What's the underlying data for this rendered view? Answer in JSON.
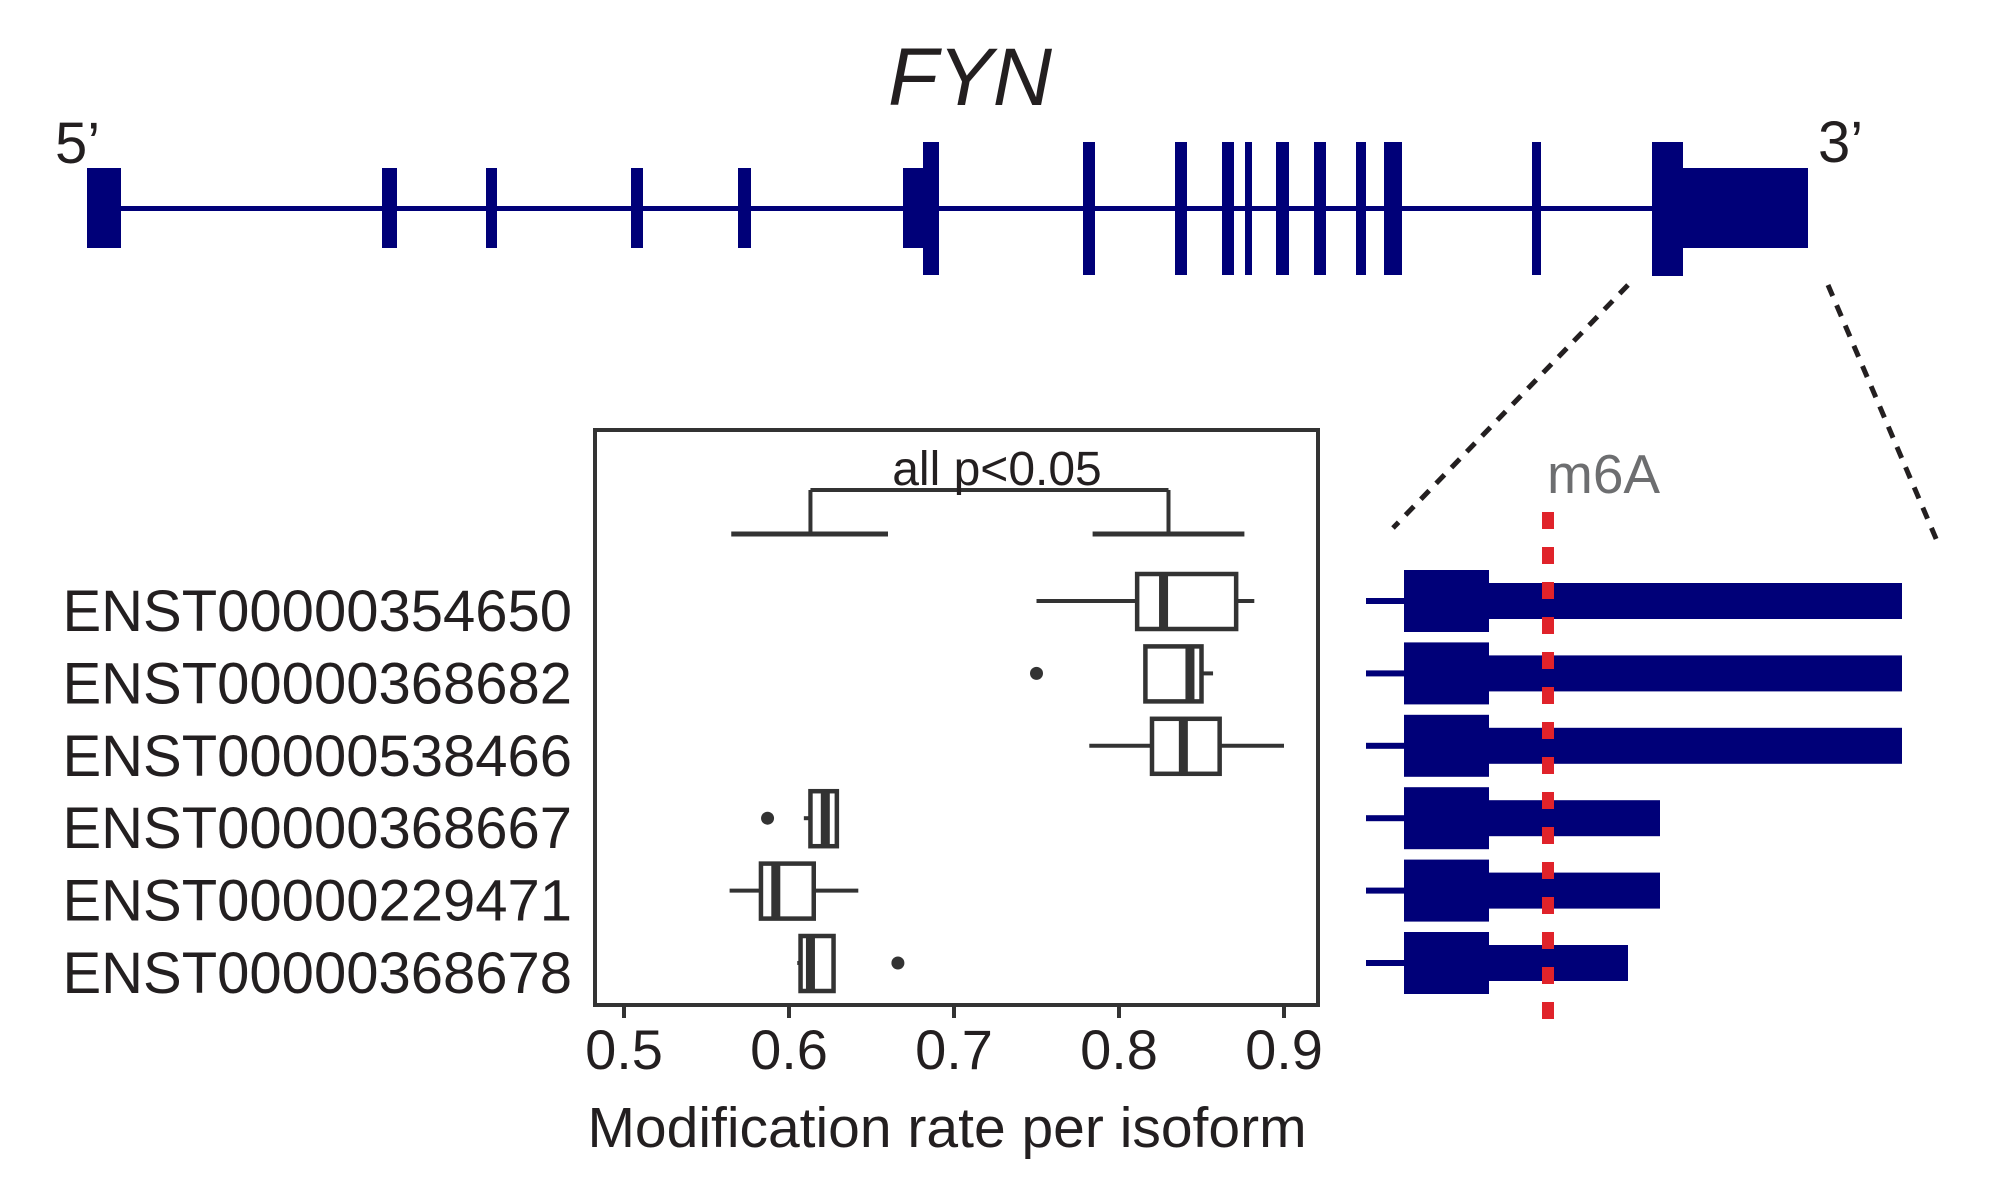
{
  "colors": {
    "exon": "#000078",
    "box_stroke": "#333333",
    "m6a_line": "#e0232a",
    "m6a_text": "#6d6e70",
    "text": "#231f20",
    "zoom_lines": "#231f20"
  },
  "gene": {
    "title": "FYN",
    "five_prime_label": "5’",
    "three_prime_label": "3’"
  },
  "m6a_label": "m6A",
  "chart_data": {
    "type": "boxplot",
    "title": "",
    "xlabel": "Modification rate per isoform",
    "ylabel": "",
    "xlim": [
      0.48,
      0.905
    ],
    "xticks": [
      0.5,
      0.6,
      0.7,
      0.8,
      0.9
    ],
    "xtick_labels": [
      "0.5",
      "0.6",
      "0.7",
      "0.8",
      "0.9"
    ],
    "grid": false,
    "annotation": {
      "text": "all p<0.05",
      "group_left": {
        "from": 0.565,
        "to": 0.66,
        "anchor": 0.613
      },
      "group_right": {
        "from": 0.784,
        "to": 0.876,
        "anchor": 0.83
      }
    },
    "series": [
      {
        "name": "ENST00000354650",
        "whisker_low": 0.75,
        "q1": 0.811,
        "median": 0.827,
        "q3": 0.871,
        "whisker_high": 0.882,
        "outliers": [],
        "isoform_3utr": "long"
      },
      {
        "name": "ENST00000368682",
        "whisker_low": 0.816,
        "q1": 0.816,
        "median": 0.843,
        "q3": 0.85,
        "whisker_high": 0.857,
        "outliers": [
          0.75
        ],
        "isoform_3utr": "long"
      },
      {
        "name": "ENST00000538466",
        "whisker_low": 0.782,
        "q1": 0.82,
        "median": 0.839,
        "q3": 0.861,
        "whisker_high": 0.9,
        "outliers": [],
        "isoform_3utr": "long"
      },
      {
        "name": "ENST00000368667",
        "whisker_low": 0.609,
        "q1": 0.613,
        "median": 0.622,
        "q3": 0.629,
        "whisker_high": 0.629,
        "outliers": [
          0.587
        ],
        "isoform_3utr": "medium"
      },
      {
        "name": "ENST00000229471",
        "whisker_low": 0.564,
        "q1": 0.583,
        "median": 0.592,
        "q3": 0.615,
        "whisker_high": 0.642,
        "outliers": [],
        "isoform_3utr": "medium"
      },
      {
        "name": "ENST00000368678",
        "whisker_low": 0.605,
        "q1": 0.607,
        "median": 0.613,
        "q3": 0.627,
        "whisker_high": 0.627,
        "outliers": [
          0.666
        ],
        "isoform_3utr": "short"
      }
    ]
  }
}
